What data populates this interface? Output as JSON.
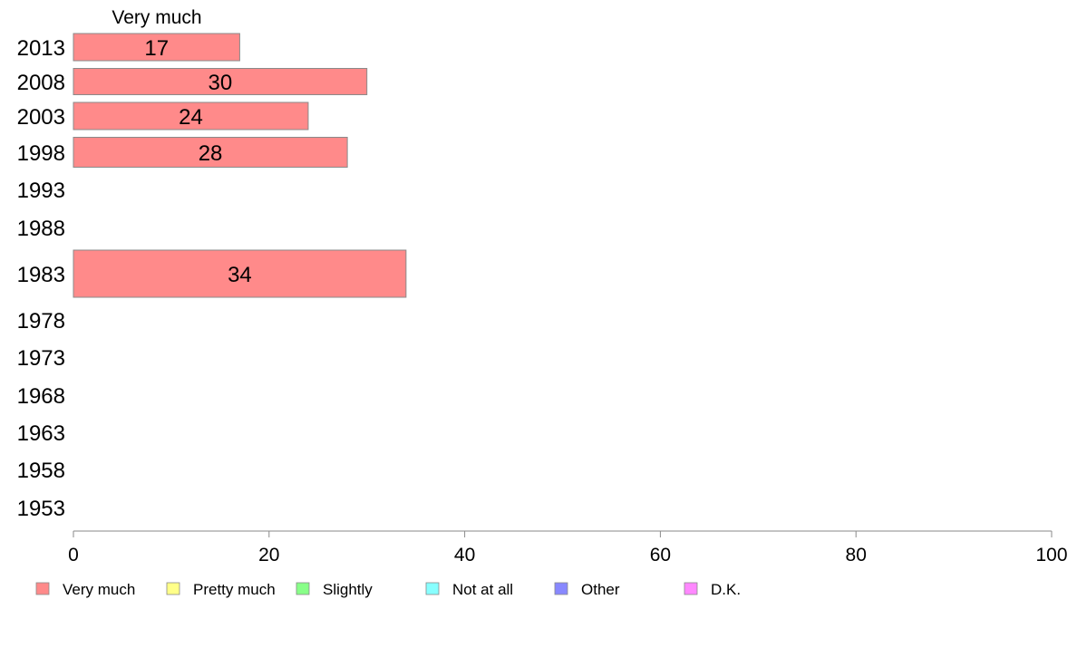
{
  "chart_data": {
    "type": "bar",
    "orientation": "horizontal",
    "column_header": "Very much",
    "categories": [
      "2013",
      "2008",
      "2003",
      "1998",
      "1993",
      "1988",
      "1983",
      "1978",
      "1973",
      "1968",
      "1963",
      "1958",
      "1953"
    ],
    "series": [
      {
        "name": "Very much",
        "color": "#ff8a8a",
        "values": [
          17,
          30,
          24,
          28,
          null,
          null,
          34,
          null,
          null,
          null,
          null,
          null,
          null
        ]
      }
    ],
    "value_labels": [
      "17",
      "30",
      "24",
      "28",
      "",
      "",
      "34",
      "",
      "",
      "",
      "",
      "",
      ""
    ],
    "xlim": [
      0,
      100
    ],
    "xticks": [
      "0",
      "20",
      "40",
      "60",
      "80",
      "100"
    ],
    "legend": [
      {
        "label": "Very much",
        "color": "#ff8a8a"
      },
      {
        "label": "Pretty much",
        "color": "#ffff88"
      },
      {
        "label": "Slightly",
        "color": "#88ff88"
      },
      {
        "label": "Not at all",
        "color": "#88ffff"
      },
      {
        "label": "Other",
        "color": "#8888ff"
      },
      {
        "label": "D.K.",
        "color": "#ff88ff"
      }
    ],
    "legend_position": "bottom",
    "grid": false
  }
}
